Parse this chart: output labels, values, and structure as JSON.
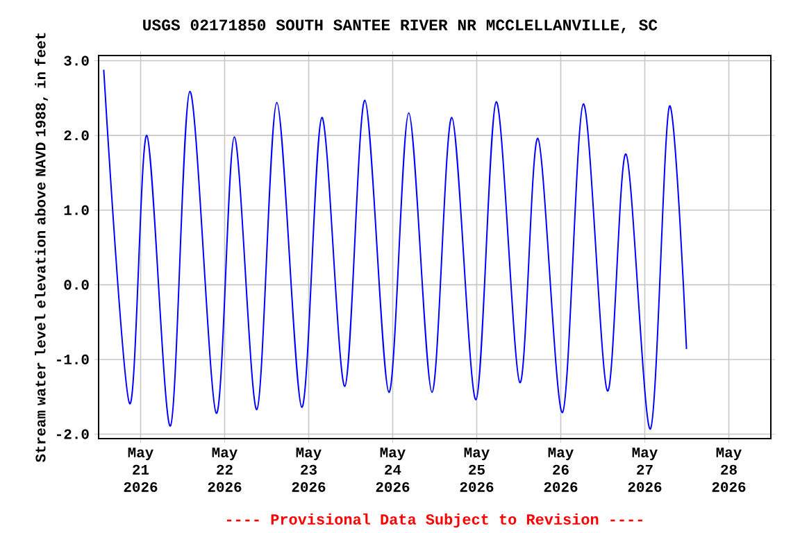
{
  "chart_data": {
    "type": "line",
    "title": "USGS 02171850 SOUTH SANTEE RIVER NR MCCLELLANVILLE, SC",
    "ylabel": "Stream water level elevation above NAVD 1988, in feet",
    "annotations": [
      "---- Provisional Data Subject to Revision ----"
    ],
    "x": [
      "2026-05-20T13:28",
      "2026-05-20T20:51",
      "2026-05-21T01:46",
      "2026-05-21T08:31",
      "2026-05-21T14:04",
      "2026-05-21T21:36",
      "2026-05-22T02:46",
      "2026-05-22T09:13",
      "2026-05-22T14:54",
      "2026-05-22T22:02",
      "2026-05-23T03:45",
      "2026-05-23T10:20",
      "2026-05-23T16:03",
      "2026-05-23T22:55",
      "2026-05-24T04:35",
      "2026-05-24T11:13",
      "2026-05-24T16:53",
      "2026-05-24T23:47",
      "2026-05-25T05:34",
      "2026-05-25T12:19",
      "2026-05-25T17:28",
      "2026-05-26T00:30",
      "2026-05-26T06:27",
      "2026-05-26T13:19",
      "2026-05-26T18:38",
      "2026-05-27T01:37",
      "2026-05-27T07:02",
      "2026-05-27T11:55"
    ],
    "series": [
      {
        "color": "#0000ff",
        "values": [
          2.88,
          -1.59,
          2.0,
          -1.89,
          2.59,
          -1.72,
          1.98,
          -1.67,
          2.44,
          -1.64,
          2.24,
          -1.36,
          2.47,
          -1.44,
          2.3,
          -1.44,
          2.24,
          -1.54,
          2.45,
          -1.31,
          1.96,
          -1.71,
          2.42,
          -1.42,
          1.75,
          -1.93,
          2.39,
          -0.86
        ]
      }
    ],
    "xlim": [
      "2026-05-20T12:00",
      "2026-05-28T12:00"
    ],
    "xticks": [
      {
        "value": "2026-05-21",
        "label": "May 21 2026"
      },
      {
        "value": "2026-05-22",
        "label": "May 22 2026"
      },
      {
        "value": "2026-05-23",
        "label": "May 23 2026"
      },
      {
        "value": "2026-05-24",
        "label": "May 24 2026"
      },
      {
        "value": "2026-05-25",
        "label": "May 25 2026"
      },
      {
        "value": "2026-05-26",
        "label": "May 26 2026"
      },
      {
        "value": "2026-05-27",
        "label": "May 27 2026"
      },
      {
        "value": "2026-05-28",
        "label": "May 28 2026"
      }
    ],
    "ylim": [
      -2.06,
      3.07
    ],
    "yticks": [
      {
        "value": -2,
        "label": "-2.0"
      },
      {
        "value": -1,
        "label": "-1.0"
      },
      {
        "value": 0,
        "label": "0.0"
      },
      {
        "value": 1,
        "label": "1.0"
      },
      {
        "value": 2,
        "label": "2.0"
      },
      {
        "value": 3,
        "label": "3.0"
      }
    ],
    "grid": true,
    "marker": "none",
    "line_style": "solid"
  }
}
